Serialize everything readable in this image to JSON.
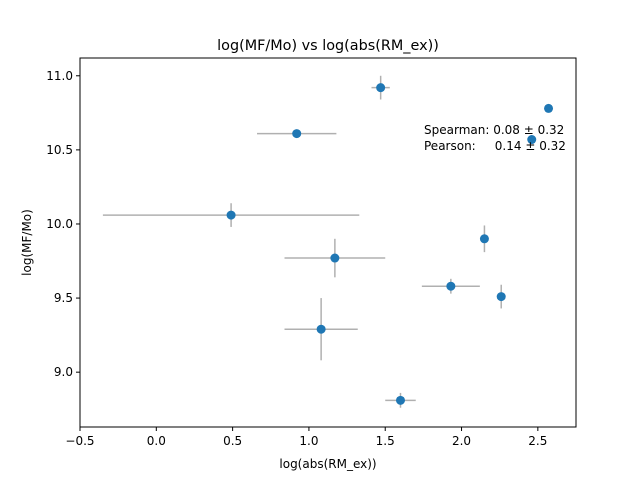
{
  "chart_data": {
    "type": "scatter",
    "title": "log(MF/Mo) vs log(abs(RM_ex))",
    "xlabel": "log(abs(RM_ex))",
    "ylabel": "log(MF/Mo)",
    "xlim": [
      -0.5,
      2.75
    ],
    "ylim": [
      8.63,
      11.12
    ],
    "xticks": [
      -0.5,
      0.0,
      0.5,
      1.0,
      1.5,
      2.0,
      2.5
    ],
    "xtick_labels": [
      "−0.5",
      "0.0",
      "0.5",
      "1.0",
      "1.5",
      "2.0",
      "2.5"
    ],
    "yticks": [
      9.0,
      9.5,
      10.0,
      10.5,
      11.0
    ],
    "ytick_labels": [
      "9.0",
      "9.5",
      "10.0",
      "10.5",
      "11.0"
    ],
    "grid": false,
    "points": [
      {
        "x": 1.47,
        "y": 10.92,
        "xerr": 0.06,
        "yerr": 0.08
      },
      {
        "x": 0.92,
        "y": 10.61,
        "xerr": 0.26,
        "yerr": 0.0
      },
      {
        "x": 2.57,
        "y": 10.78,
        "xerr": 0.0,
        "yerr": 0.0
      },
      {
        "x": 2.46,
        "y": 10.57,
        "xerr": 0.0,
        "yerr": 0.0
      },
      {
        "x": 0.49,
        "y": 10.06,
        "xerr": 0.84,
        "yerr": 0.08
      },
      {
        "x": 1.17,
        "y": 9.77,
        "xerr": 0.33,
        "yerr": 0.13
      },
      {
        "x": 2.15,
        "y": 9.9,
        "xerr": 0.0,
        "yerr": 0.09
      },
      {
        "x": 1.93,
        "y": 9.58,
        "xerr": 0.19,
        "yerr": 0.05
      },
      {
        "x": 2.26,
        "y": 9.51,
        "xerr": 0.0,
        "yerr": 0.08
      },
      {
        "x": 1.08,
        "y": 9.29,
        "xerr": 0.24,
        "yerr": 0.21
      },
      {
        "x": 1.6,
        "y": 8.81,
        "xerr": 0.1,
        "yerr": 0.05
      }
    ],
    "annotation": {
      "line1": "Spearman: 0.08 ± 0.32",
      "line2": "Pearson:     0.14 ± 0.32"
    },
    "colors": {
      "marker": "#1f77b4",
      "errorbar": "#b0b0b0",
      "axes": "#000000"
    }
  }
}
